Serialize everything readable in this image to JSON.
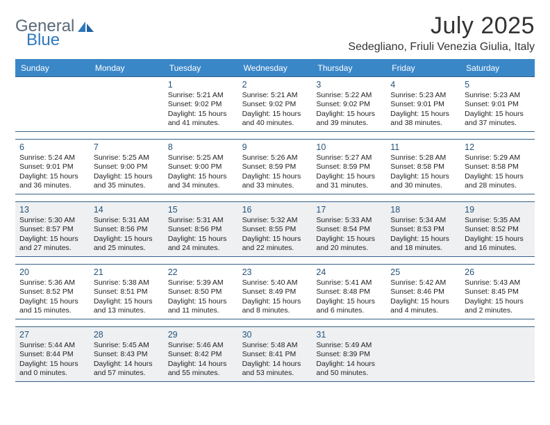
{
  "brand": {
    "part1": "General",
    "part2": "Blue"
  },
  "title": {
    "month": "July 2025",
    "location": "Sedegliano, Friuli Venezia Giulia, Italy"
  },
  "colors": {
    "header_bg": "#3a87c8",
    "header_text": "#ffffff",
    "row_border": "#355f87",
    "shaded_bg": "#eef0f2",
    "daynum_color": "#25537a",
    "body_text": "#222222",
    "logo_gray": "#5a6a78",
    "logo_blue": "#2f78bd"
  },
  "weekdays": [
    "Sunday",
    "Monday",
    "Tuesday",
    "Wednesday",
    "Thursday",
    "Friday",
    "Saturday"
  ],
  "weeks": [
    {
      "shaded": false,
      "days": [
        {
          "n": "",
          "sr": "",
          "ss": "",
          "dl": ""
        },
        {
          "n": "",
          "sr": "",
          "ss": "",
          "dl": ""
        },
        {
          "n": "1",
          "sr": "Sunrise: 5:21 AM",
          "ss": "Sunset: 9:02 PM",
          "dl": "Daylight: 15 hours and 41 minutes."
        },
        {
          "n": "2",
          "sr": "Sunrise: 5:21 AM",
          "ss": "Sunset: 9:02 PM",
          "dl": "Daylight: 15 hours and 40 minutes."
        },
        {
          "n": "3",
          "sr": "Sunrise: 5:22 AM",
          "ss": "Sunset: 9:02 PM",
          "dl": "Daylight: 15 hours and 39 minutes."
        },
        {
          "n": "4",
          "sr": "Sunrise: 5:23 AM",
          "ss": "Sunset: 9:01 PM",
          "dl": "Daylight: 15 hours and 38 minutes."
        },
        {
          "n": "5",
          "sr": "Sunrise: 5:23 AM",
          "ss": "Sunset: 9:01 PM",
          "dl": "Daylight: 15 hours and 37 minutes."
        }
      ]
    },
    {
      "shaded": false,
      "days": [
        {
          "n": "6",
          "sr": "Sunrise: 5:24 AM",
          "ss": "Sunset: 9:01 PM",
          "dl": "Daylight: 15 hours and 36 minutes."
        },
        {
          "n": "7",
          "sr": "Sunrise: 5:25 AM",
          "ss": "Sunset: 9:00 PM",
          "dl": "Daylight: 15 hours and 35 minutes."
        },
        {
          "n": "8",
          "sr": "Sunrise: 5:25 AM",
          "ss": "Sunset: 9:00 PM",
          "dl": "Daylight: 15 hours and 34 minutes."
        },
        {
          "n": "9",
          "sr": "Sunrise: 5:26 AM",
          "ss": "Sunset: 8:59 PM",
          "dl": "Daylight: 15 hours and 33 minutes."
        },
        {
          "n": "10",
          "sr": "Sunrise: 5:27 AM",
          "ss": "Sunset: 8:59 PM",
          "dl": "Daylight: 15 hours and 31 minutes."
        },
        {
          "n": "11",
          "sr": "Sunrise: 5:28 AM",
          "ss": "Sunset: 8:58 PM",
          "dl": "Daylight: 15 hours and 30 minutes."
        },
        {
          "n": "12",
          "sr": "Sunrise: 5:29 AM",
          "ss": "Sunset: 8:58 PM",
          "dl": "Daylight: 15 hours and 28 minutes."
        }
      ]
    },
    {
      "shaded": true,
      "days": [
        {
          "n": "13",
          "sr": "Sunrise: 5:30 AM",
          "ss": "Sunset: 8:57 PM",
          "dl": "Daylight: 15 hours and 27 minutes."
        },
        {
          "n": "14",
          "sr": "Sunrise: 5:31 AM",
          "ss": "Sunset: 8:56 PM",
          "dl": "Daylight: 15 hours and 25 minutes."
        },
        {
          "n": "15",
          "sr": "Sunrise: 5:31 AM",
          "ss": "Sunset: 8:56 PM",
          "dl": "Daylight: 15 hours and 24 minutes."
        },
        {
          "n": "16",
          "sr": "Sunrise: 5:32 AM",
          "ss": "Sunset: 8:55 PM",
          "dl": "Daylight: 15 hours and 22 minutes."
        },
        {
          "n": "17",
          "sr": "Sunrise: 5:33 AM",
          "ss": "Sunset: 8:54 PM",
          "dl": "Daylight: 15 hours and 20 minutes."
        },
        {
          "n": "18",
          "sr": "Sunrise: 5:34 AM",
          "ss": "Sunset: 8:53 PM",
          "dl": "Daylight: 15 hours and 18 minutes."
        },
        {
          "n": "19",
          "sr": "Sunrise: 5:35 AM",
          "ss": "Sunset: 8:52 PM",
          "dl": "Daylight: 15 hours and 16 minutes."
        }
      ]
    },
    {
      "shaded": false,
      "days": [
        {
          "n": "20",
          "sr": "Sunrise: 5:36 AM",
          "ss": "Sunset: 8:52 PM",
          "dl": "Daylight: 15 hours and 15 minutes."
        },
        {
          "n": "21",
          "sr": "Sunrise: 5:38 AM",
          "ss": "Sunset: 8:51 PM",
          "dl": "Daylight: 15 hours and 13 minutes."
        },
        {
          "n": "22",
          "sr": "Sunrise: 5:39 AM",
          "ss": "Sunset: 8:50 PM",
          "dl": "Daylight: 15 hours and 11 minutes."
        },
        {
          "n": "23",
          "sr": "Sunrise: 5:40 AM",
          "ss": "Sunset: 8:49 PM",
          "dl": "Daylight: 15 hours and 8 minutes."
        },
        {
          "n": "24",
          "sr": "Sunrise: 5:41 AM",
          "ss": "Sunset: 8:48 PM",
          "dl": "Daylight: 15 hours and 6 minutes."
        },
        {
          "n": "25",
          "sr": "Sunrise: 5:42 AM",
          "ss": "Sunset: 8:46 PM",
          "dl": "Daylight: 15 hours and 4 minutes."
        },
        {
          "n": "26",
          "sr": "Sunrise: 5:43 AM",
          "ss": "Sunset: 8:45 PM",
          "dl": "Daylight: 15 hours and 2 minutes."
        }
      ]
    },
    {
      "shaded": true,
      "days": [
        {
          "n": "27",
          "sr": "Sunrise: 5:44 AM",
          "ss": "Sunset: 8:44 PM",
          "dl": "Daylight: 15 hours and 0 minutes."
        },
        {
          "n": "28",
          "sr": "Sunrise: 5:45 AM",
          "ss": "Sunset: 8:43 PM",
          "dl": "Daylight: 14 hours and 57 minutes."
        },
        {
          "n": "29",
          "sr": "Sunrise: 5:46 AM",
          "ss": "Sunset: 8:42 PM",
          "dl": "Daylight: 14 hours and 55 minutes."
        },
        {
          "n": "30",
          "sr": "Sunrise: 5:48 AM",
          "ss": "Sunset: 8:41 PM",
          "dl": "Daylight: 14 hours and 53 minutes."
        },
        {
          "n": "31",
          "sr": "Sunrise: 5:49 AM",
          "ss": "Sunset: 8:39 PM",
          "dl": "Daylight: 14 hours and 50 minutes."
        },
        {
          "n": "",
          "sr": "",
          "ss": "",
          "dl": ""
        },
        {
          "n": "",
          "sr": "",
          "ss": "",
          "dl": ""
        }
      ]
    }
  ]
}
